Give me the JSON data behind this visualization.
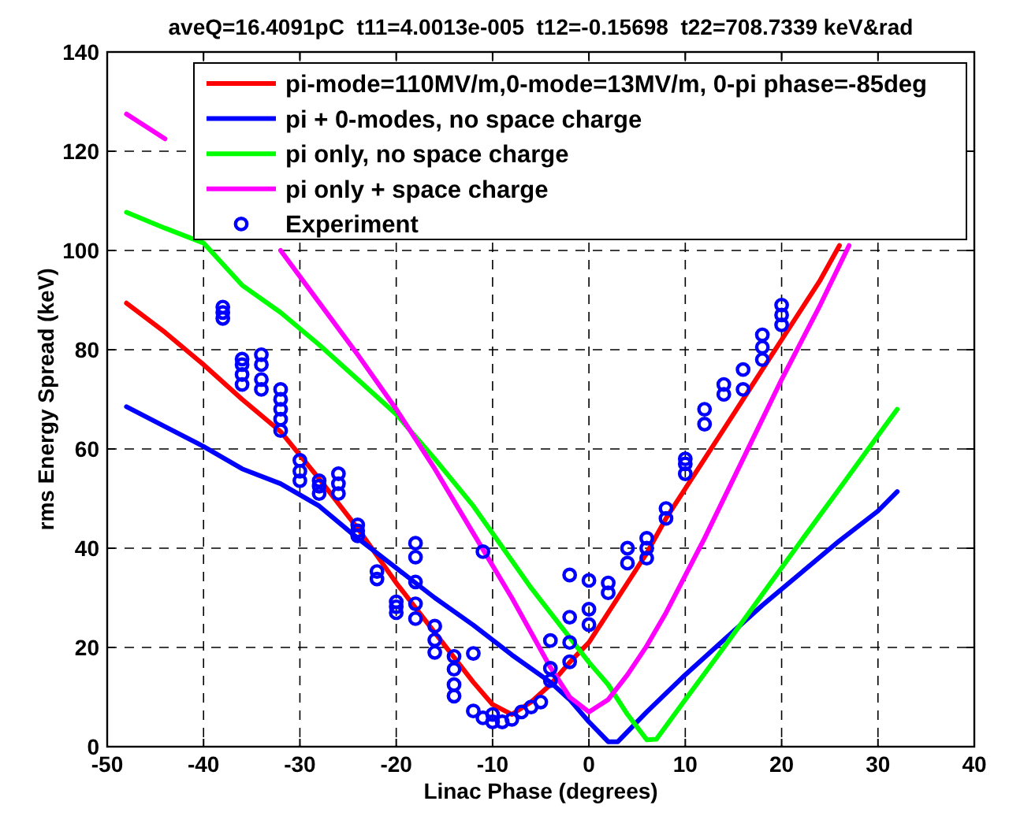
{
  "chart_data": {
    "type": "line",
    "title": "aveQ=16.4091pC  t11=4.0013e-005  t12=-0.15698  t22=708.7339 keV&rad",
    "xlabel": "Linac Phase (degrees)",
    "ylabel": "rms Energy Spread (keV)",
    "xlim": [
      -50,
      40
    ],
    "xticks": [
      -50,
      -40,
      -30,
      -20,
      -10,
      0,
      10,
      20,
      30,
      40
    ],
    "ylim": [
      0,
      140
    ],
    "yticks": [
      0,
      20,
      40,
      60,
      80,
      100,
      120,
      140
    ],
    "grid": true,
    "legend": "top right",
    "series": [
      {
        "name": "pi-mode=110MV/m,0-mode=13MV/m, 0-pi phase=-85deg",
        "color": "#ff0000",
        "x": [
          -48,
          -44,
          -40,
          -36,
          -32,
          -28,
          -24,
          -20,
          -16,
          -12,
          -10,
          -8,
          -6,
          -4,
          -2,
          0,
          2,
          4,
          6,
          8,
          10,
          12,
          14,
          16,
          18,
          20,
          22,
          24,
          26
        ],
        "values": [
          89.4,
          83.5,
          77,
          70,
          63.5,
          54,
          44,
          33,
          23,
          13,
          8.5,
          6.5,
          9,
          12.5,
          17,
          21,
          27,
          33,
          39,
          46,
          52,
          58,
          64,
          70,
          76,
          82,
          88,
          94,
          101
        ]
      },
      {
        "name": "pi + 0-modes, no space charge",
        "color": "#0000ff",
        "x": [
          -48,
          -44,
          -40,
          -36,
          -32,
          -28,
          -24,
          -20,
          -16,
          -12,
          -8,
          -4,
          -2,
          0,
          2,
          3,
          6,
          10,
          14,
          18,
          22,
          26,
          30,
          32
        ],
        "values": [
          68.5,
          64.5,
          60.5,
          56,
          53,
          48.5,
          42,
          36,
          30,
          24.5,
          18.5,
          13,
          9.5,
          5,
          1,
          1,
          7,
          14.5,
          21.5,
          28.5,
          35,
          41.5,
          47.5,
          51.4
        ]
      },
      {
        "name": "pi only, no space charge",
        "color": "#00ff00",
        "x": [
          -48,
          -44,
          -40,
          -36,
          -32,
          -28,
          -24,
          -20,
          -16,
          -12,
          -8,
          -6,
          -4,
          -2,
          0,
          2,
          4,
          6,
          7,
          10,
          14,
          18,
          22,
          26,
          30,
          32
        ],
        "values": [
          107.7,
          104.5,
          101.5,
          93,
          87.5,
          81,
          74,
          67,
          58,
          48.5,
          37.5,
          32,
          27,
          22,
          17,
          12.5,
          6.5,
          1.4,
          1.5,
          9.5,
          20,
          30.7,
          41.4,
          52,
          62.7,
          68
        ]
      },
      {
        "name": "pi only + space charge",
        "color": "#ff00ff",
        "x": [
          -48,
          -44,
          -40,
          -36,
          -32,
          -28,
          -24,
          -20,
          -16,
          -12,
          -8,
          -4,
          -2,
          0,
          2,
          4,
          6,
          8,
          12,
          16,
          20,
          24,
          27
        ],
        "values": [
          127.5,
          122.5,
          null,
          null,
          100,
          89.5,
          79,
          68,
          56,
          43,
          30,
          16,
          10,
          7,
          9.5,
          14.5,
          20.3,
          27,
          42,
          58,
          74,
          89,
          101
        ]
      },
      {
        "name": "Experiment",
        "color": "#0000ff",
        "type": "scatter",
        "marker": "circle",
        "x": [
          -38,
          -38,
          -38,
          -36,
          -36,
          -36,
          -36,
          -34,
          -34,
          -34,
          -34,
          -32,
          -32,
          -32,
          -32,
          -32,
          -30,
          -30,
          -30,
          -28,
          -28,
          -28,
          -26,
          -26,
          -26,
          -24,
          -24,
          -24,
          -22,
          -22,
          -20,
          -20,
          -20,
          -18,
          -18,
          -18,
          -18,
          -18,
          -16,
          -16,
          -16,
          -14,
          -14,
          -14,
          -14,
          -12,
          -11,
          -12,
          -11,
          -10,
          -10,
          -9,
          -8,
          -7,
          -6,
          -5,
          -4,
          -4,
          -4,
          -2,
          -2,
          -2,
          -2,
          0,
          0,
          0,
          2,
          2,
          4,
          4,
          6,
          6,
          6,
          8,
          8,
          10,
          10,
          10,
          12,
          12,
          14,
          14,
          16,
          16,
          18,
          18,
          18,
          20,
          20,
          20
        ],
        "values": [
          86.3,
          87.5,
          88.6,
          73,
          75,
          77,
          78.1,
          72,
          74,
          77,
          79,
          63.7,
          66,
          68,
          70,
          72,
          53.6,
          55.5,
          57.7,
          51,
          52.5,
          53.6,
          51,
          53,
          55,
          42.5,
          43.5,
          44.7,
          33.8,
          35.3,
          27,
          28.2,
          29.2,
          41,
          38.2,
          33.2,
          28.8,
          25.8,
          19,
          21.5,
          24.3,
          10.2,
          12.5,
          15.6,
          18.2,
          18.8,
          39.3,
          7.2,
          5.8,
          6.5,
          5,
          5,
          5.5,
          7,
          8,
          9,
          21.4,
          15.8,
          13.3,
          34.6,
          26.1,
          21,
          17.1,
          33.5,
          27.7,
          24.6,
          31,
          33,
          37,
          40,
          38,
          40,
          42,
          46,
          48,
          55,
          57,
          58,
          65,
          68,
          71,
          73,
          72,
          76,
          78,
          80.5,
          83,
          85,
          87,
          89
        ]
      }
    ]
  }
}
